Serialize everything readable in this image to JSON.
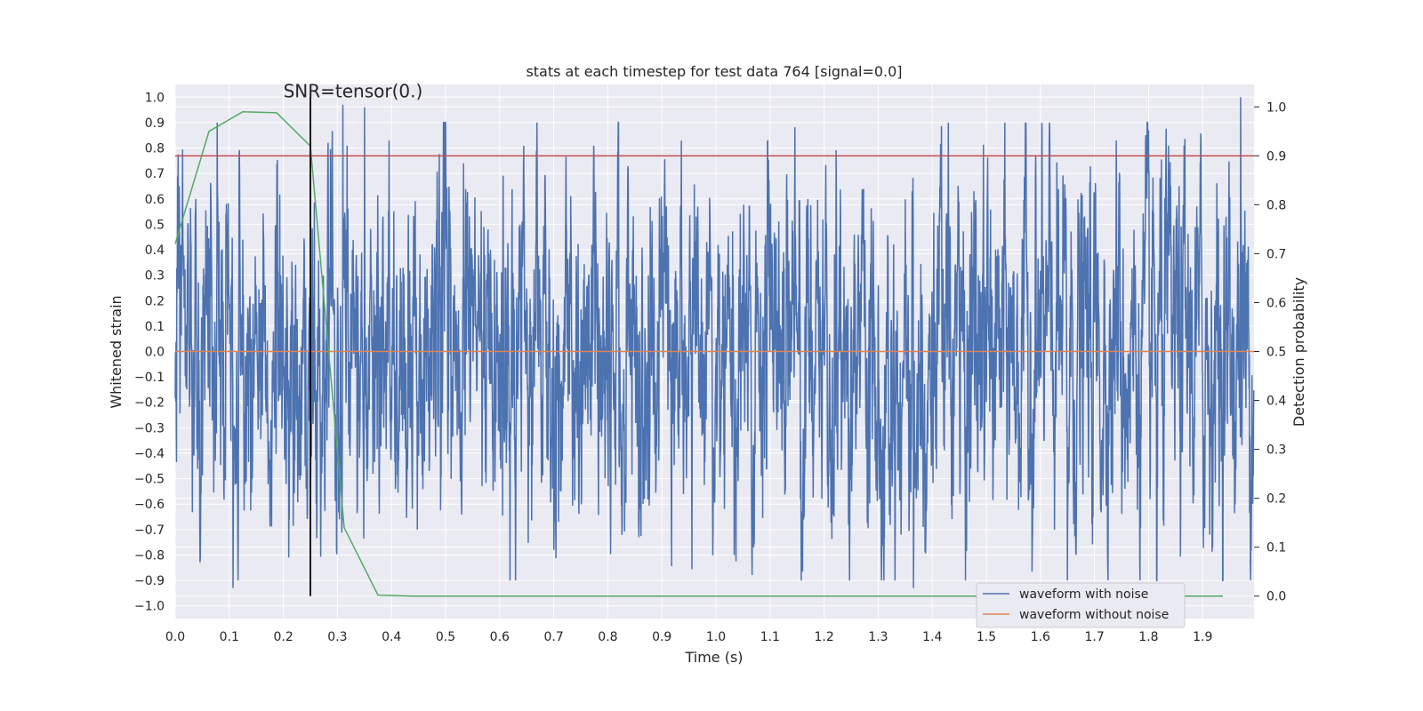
{
  "chart_data": {
    "type": "line",
    "title": "stats at each timestep for test data 764 [signal=0.0]",
    "xlabel": "Time (s)",
    "ylabel": "Whitened strain",
    "y2label": "Detection probability",
    "xlim": [
      0.0,
      1.995
    ],
    "ylim": [
      -1.05,
      1.05
    ],
    "y2lim": [
      -0.0459,
      1.0459
    ],
    "x_ticks": [
      "0.0",
      "0.1",
      "0.2",
      "0.3",
      "0.4",
      "0.5",
      "0.6",
      "0.7",
      "0.8",
      "0.9",
      "1.0",
      "1.1",
      "1.2",
      "1.3",
      "1.4",
      "1.5",
      "1.6",
      "1.7",
      "1.8",
      "1.9"
    ],
    "y_ticks": [
      "1.0",
      "0.9",
      "0.8",
      "0.7",
      "0.6",
      "0.5",
      "0.4",
      "0.3",
      "0.2",
      "0.1",
      "0.0",
      "−0.1",
      "−0.2",
      "−0.3",
      "−0.4",
      "−0.5",
      "−0.6",
      "−0.7",
      "−0.8",
      "−0.9",
      "−1.0"
    ],
    "y2_ticks": [
      "1.0",
      "0.9",
      "0.8",
      "0.7",
      "0.6",
      "0.5",
      "0.4",
      "0.3",
      "0.2",
      "0.1",
      "0.0"
    ],
    "grid": true,
    "legend_position": "lower-right",
    "series": [
      {
        "name": "waveform with noise",
        "color": "#4c72b0",
        "axis": "left",
        "kind": "noise",
        "sample_rate_hz": 2048,
        "range": [
          -1.0,
          1.0
        ],
        "extreme_points": [
          [
            0.107,
            -0.93
          ],
          [
            0.118,
            0.78
          ],
          [
            0.21,
            -0.81
          ],
          [
            0.31,
            0.97
          ],
          [
            0.35,
            0.96
          ],
          [
            0.7,
            -0.78
          ],
          [
            1.07,
            -0.77
          ],
          [
            1.365,
            -0.93
          ],
          [
            1.65,
            -0.9
          ],
          [
            1.74,
            0.83
          ],
          [
            1.815,
            -0.9
          ],
          [
            1.97,
            1.0
          ]
        ]
      },
      {
        "name": "waveform without noise",
        "color": "#dd8452",
        "axis": "left",
        "x": [
          0.0,
          1.995
        ],
        "y": [
          0.0,
          0.0
        ]
      },
      {
        "color": "#55a868",
        "axis": "right",
        "x": [
          0.0,
          0.0625,
          0.125,
          0.1875,
          0.25,
          0.3125,
          0.375,
          0.4375,
          0.5,
          0.75,
          1.0,
          1.25,
          1.5,
          1.75,
          1.9375
        ],
        "y": [
          0.72,
          0.95,
          0.99,
          0.988,
          0.92,
          0.14,
          0.002,
          0.0,
          0.0,
          0.0,
          0.0,
          0.0,
          0.0,
          0.0,
          0.0
        ]
      }
    ],
    "threshold": {
      "value": 0.9,
      "axis": "right",
      "color": "#c44e52"
    },
    "event_marker": {
      "x": 0.25,
      "color": "#000000"
    },
    "annotation": {
      "text": "SNR=tensor(0.)",
      "x": 0.2,
      "y": 1.0
    }
  }
}
